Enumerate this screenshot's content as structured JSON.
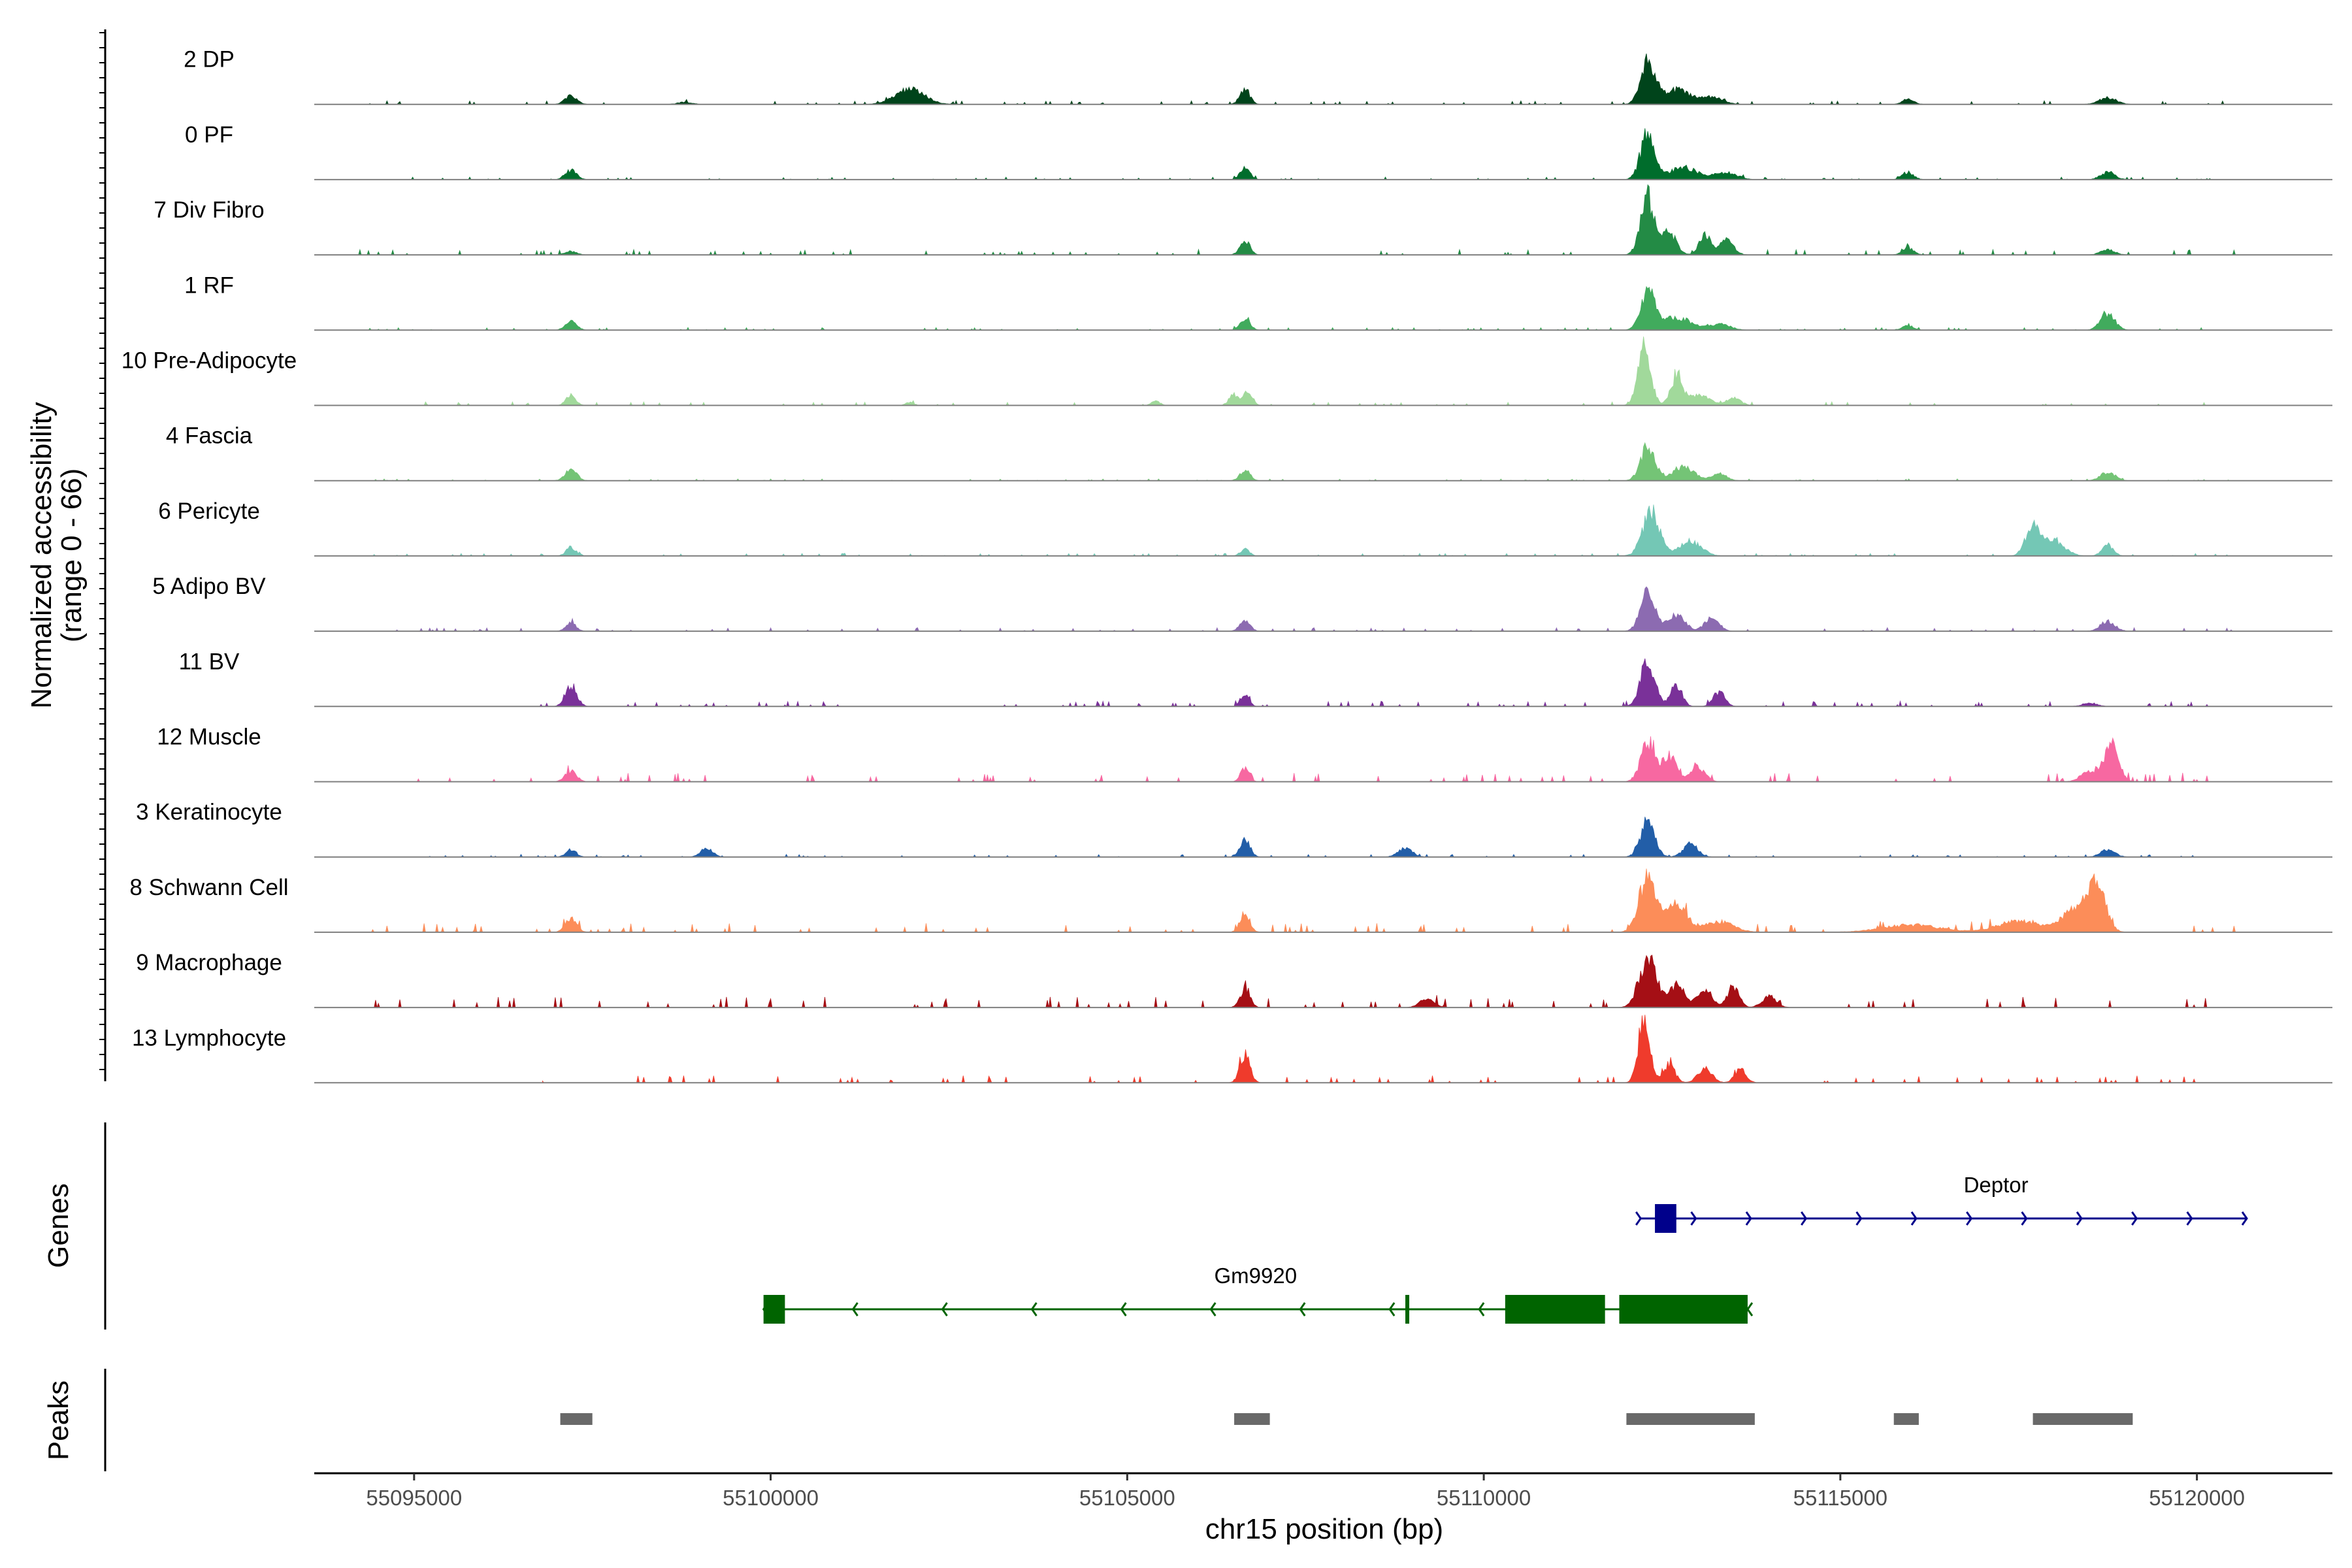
{
  "chart_data": {
    "type": "area",
    "title": "",
    "ylabel_line1": "Normalized accessibility",
    "ylabel_line2": "(range 0 - 66)",
    "xlabel": "chr15 position (bp)",
    "y_range": [
      0,
      66
    ],
    "xlim": [
      55093600,
      55121900
    ],
    "x_ticks": [
      55095000,
      55100000,
      55105000,
      55110000,
      55115000,
      55120000
    ],
    "x_tick_labels": [
      "55095000",
      "55100000",
      "55105000",
      "55110000",
      "55115000",
      "55120000"
    ],
    "tracks": [
      {
        "name": "2 DP",
        "color": "#00441B",
        "scale": 1.0,
        "peaks": [
          [
            55097200,
            0.13,
            80
          ],
          [
            55098800,
            0.03,
            100
          ],
          [
            55101950,
            0.22,
            200
          ],
          [
            55106650,
            0.2,
            70
          ],
          [
            55112300,
            0.56,
            100
          ],
          [
            55112700,
            0.2,
            200
          ],
          [
            55113200,
            0.1,
            150
          ],
          [
            55115950,
            0.07,
            80
          ],
          [
            55118750,
            0.09,
            120
          ]
        ],
        "noise": 0.02,
        "span": [
          55094200,
          55120600
        ]
      },
      {
        "name": "0 PF",
        "color": "#006D2C",
        "scale": 1.0,
        "peaks": [
          [
            55097200,
            0.13,
            80
          ],
          [
            55106650,
            0.16,
            70
          ],
          [
            55112300,
            0.62,
            100
          ],
          [
            55112800,
            0.17,
            200
          ],
          [
            55113400,
            0.1,
            150
          ],
          [
            55115950,
            0.1,
            80
          ],
          [
            55118750,
            0.1,
            100
          ]
        ],
        "noise": 0.015,
        "span": [
          55094200,
          55120600
        ]
      },
      {
        "name": "7 Div Fibro",
        "color": "#238B45",
        "scale": 1.0,
        "peaks": [
          [
            55097200,
            0.05,
            80
          ],
          [
            55106650,
            0.2,
            70
          ],
          [
            55112300,
            0.78,
            100
          ],
          [
            55112600,
            0.3,
            100
          ],
          [
            55113100,
            0.27,
            80
          ],
          [
            55113400,
            0.2,
            100
          ],
          [
            55115950,
            0.09,
            80
          ],
          [
            55118750,
            0.07,
            100
          ]
        ],
        "noise": 0.03,
        "span": [
          55094200,
          55120600
        ]
      },
      {
        "name": "1 RF",
        "color": "#41AB5D",
        "scale": 1.0,
        "peaks": [
          [
            55097200,
            0.12,
            80
          ],
          [
            55106650,
            0.16,
            70
          ],
          [
            55112300,
            0.52,
            100
          ],
          [
            55112700,
            0.18,
            200
          ],
          [
            55113300,
            0.08,
            150
          ],
          [
            55115950,
            0.06,
            80
          ],
          [
            55118750,
            0.22,
            100
          ]
        ],
        "noise": 0.015,
        "span": [
          55094200,
          55120600
        ]
      },
      {
        "name": "10 Pre-Adipocyte",
        "color": "#A1D99B",
        "scale": 1.0,
        "peaks": [
          [
            55097200,
            0.14,
            70
          ],
          [
            55106500,
            0.15,
            70
          ],
          [
            55106700,
            0.2,
            60
          ],
          [
            55112250,
            0.8,
            90
          ],
          [
            55112700,
            0.38,
            80
          ],
          [
            55113000,
            0.15,
            150
          ],
          [
            55113500,
            0.1,
            100
          ],
          [
            55101950,
            0.04,
            60
          ],
          [
            55105400,
            0.06,
            60
          ]
        ],
        "noise": 0.02,
        "span": [
          55094200,
          55120600
        ]
      },
      {
        "name": "4 Fascia",
        "color": "#74C476",
        "scale": 1.0,
        "peaks": [
          [
            55097200,
            0.16,
            80
          ],
          [
            55106650,
            0.15,
            70
          ],
          [
            55112300,
            0.48,
            100
          ],
          [
            55112800,
            0.2,
            150
          ],
          [
            55113300,
            0.1,
            100
          ],
          [
            55118750,
            0.12,
            100
          ]
        ],
        "noise": 0.01,
        "span": [
          55094200,
          55120600
        ]
      },
      {
        "name": "6 Pericyte",
        "color": "#74C7B5",
        "scale": 1.0,
        "peaks": [
          [
            55097200,
            0.12,
            70
          ],
          [
            55106650,
            0.1,
            60
          ],
          [
            55112350,
            0.6,
            120
          ],
          [
            55112900,
            0.2,
            150
          ],
          [
            55117700,
            0.4,
            100
          ],
          [
            55118000,
            0.2,
            150
          ],
          [
            55118750,
            0.15,
            80
          ]
        ],
        "noise": 0.015,
        "span": [
          55094200,
          55120600
        ]
      },
      {
        "name": "5 Adipo BV",
        "color": "#8C6BB1",
        "scale": 1.0,
        "peaks": [
          [
            55097200,
            0.12,
            70
          ],
          [
            55106650,
            0.15,
            70
          ],
          [
            55112300,
            0.55,
            100
          ],
          [
            55112700,
            0.22,
            120
          ],
          [
            55113200,
            0.18,
            100
          ],
          [
            55118750,
            0.14,
            100
          ]
        ],
        "noise": 0.02,
        "span": [
          55094200,
          55120600
        ]
      },
      {
        "name": "11 BV",
        "color": "#7A3199",
        "scale": 1.0,
        "peaks": [
          [
            55097200,
            0.3,
            80
          ],
          [
            55112300,
            0.65,
            100
          ],
          [
            55112700,
            0.3,
            80
          ],
          [
            55113300,
            0.2,
            80
          ],
          [
            55106650,
            0.15,
            60
          ],
          [
            55118500,
            0.05,
            100
          ]
        ],
        "noise": 0.03,
        "span": [
          55096600,
          55120600
        ]
      },
      {
        "name": "12 Muscle",
        "color": "#F768A1",
        "scale": 1.0,
        "peaks": [
          [
            55097200,
            0.15,
            80
          ],
          [
            55106650,
            0.2,
            60
          ],
          [
            55112300,
            0.55,
            100
          ],
          [
            55112600,
            0.35,
            100
          ],
          [
            55113000,
            0.2,
            100
          ],
          [
            55118800,
            0.5,
            100
          ],
          [
            55118500,
            0.15,
            120
          ]
        ],
        "noise": 0.05,
        "span": [
          55094900,
          55120300
        ]
      },
      {
        "name": "3 Keratinocyte",
        "color": "#225EA8",
        "scale": 1.0,
        "peaks": [
          [
            55097200,
            0.1,
            70
          ],
          [
            55099100,
            0.14,
            80
          ],
          [
            55106650,
            0.25,
            70
          ],
          [
            55108900,
            0.12,
            100
          ],
          [
            55112300,
            0.48,
            100
          ],
          [
            55112900,
            0.18,
            100
          ],
          [
            55118750,
            0.1,
            100
          ]
        ],
        "noise": 0.015,
        "span": [
          55094200,
          55120600
        ]
      },
      {
        "name": "8 Schwann Cell",
        "color": "#FC8D59",
        "scale": 1.0,
        "peaks": [
          [
            55097200,
            0.18,
            80
          ],
          [
            55106650,
            0.26,
            70
          ],
          [
            55112300,
            0.78,
            120
          ],
          [
            55112700,
            0.35,
            150
          ],
          [
            55113300,
            0.15,
            200
          ],
          [
            55118600,
            0.6,
            120
          ],
          [
            55118300,
            0.3,
            200
          ],
          [
            55117500,
            0.15,
            300
          ],
          [
            55116000,
            0.1,
            400
          ]
        ],
        "noise": 0.05,
        "span": [
          55094200,
          55120600
        ]
      },
      {
        "name": "9 Macrophage",
        "color": "#A50F15",
        "scale": 1.0,
        "peaks": [
          [
            55106650,
            0.25,
            70
          ],
          [
            55112300,
            0.68,
            120
          ],
          [
            55112700,
            0.3,
            120
          ],
          [
            55113100,
            0.25,
            100
          ],
          [
            55113500,
            0.3,
            80
          ],
          [
            55114000,
            0.15,
            100
          ],
          [
            55109200,
            0.12,
            100
          ]
        ],
        "noise": 0.06,
        "span": [
          55094200,
          55120600
        ]
      },
      {
        "name": "13 Lymphocyte",
        "color": "#EF3B2C",
        "scale": 1.0,
        "peaks": [
          [
            55106650,
            0.4,
            70
          ],
          [
            55112250,
            0.9,
            80
          ],
          [
            55112600,
            0.25,
            80
          ],
          [
            55113100,
            0.2,
            100
          ],
          [
            55113600,
            0.18,
            80
          ]
        ],
        "noise": 0.04,
        "span": [
          55096800,
          55120600
        ]
      }
    ],
    "genes_panel_title": "Genes",
    "genes": [
      {
        "name": "Deptor",
        "strand": "+",
        "start": 55112200,
        "end": 55120700,
        "color": "#00008B",
        "exons": [
          [
            55112400,
            55112700
          ]
        ],
        "row": 1
      },
      {
        "name": "Gm9920",
        "strand": "-",
        "start": 55099900,
        "end": 55113700,
        "color": "#006400",
        "exons": [
          [
            55099900,
            55100200
          ],
          [
            55108900,
            55108950
          ],
          [
            55110300,
            55111700
          ],
          [
            55111900,
            55113700
          ]
        ],
        "row": 2
      }
    ],
    "peaks_panel_title": "Peaks",
    "peak_regions": [
      [
        55097050,
        55097500
      ],
      [
        55106500,
        55107000
      ],
      [
        55112000,
        55113800
      ],
      [
        55115750,
        55116100
      ],
      [
        55117700,
        55119100
      ]
    ],
    "peak_color": "#696969"
  }
}
